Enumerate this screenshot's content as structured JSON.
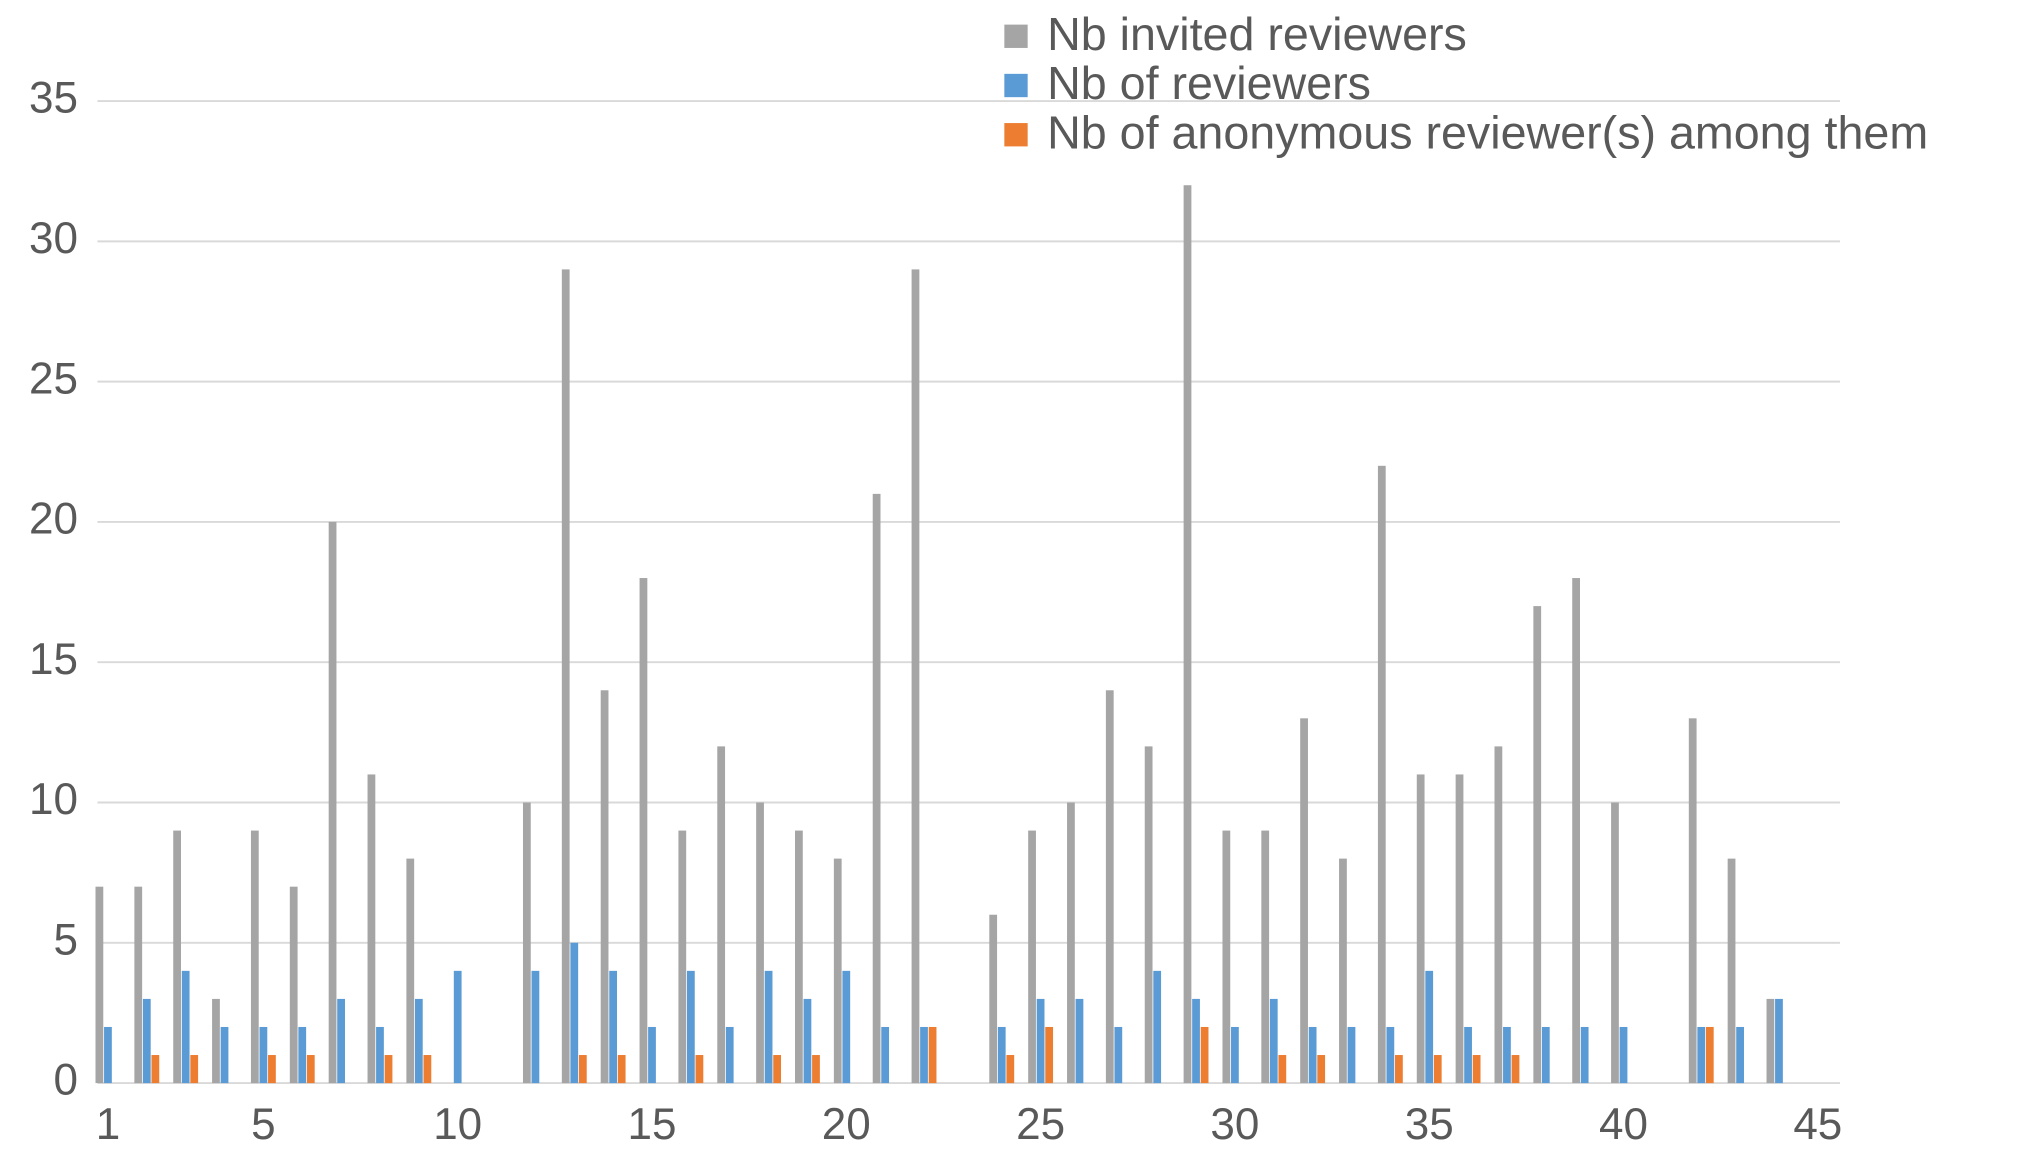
{
  "chart_data": {
    "type": "bar",
    "x": [
      1,
      2,
      3,
      4,
      5,
      6,
      7,
      8,
      9,
      10,
      11,
      12,
      13,
      14,
      15,
      16,
      17,
      18,
      19,
      20,
      21,
      22,
      23,
      24,
      25,
      26,
      27,
      28,
      29,
      30,
      31,
      32,
      33,
      34,
      35,
      36,
      37,
      38,
      39,
      40,
      41,
      42,
      43,
      44
    ],
    "series": [
      {
        "name": "Nb invited reviewers",
        "color": "#a5a5a5",
        "values": [
          7,
          7,
          9,
          3,
          9,
          7,
          20,
          11,
          8,
          0,
          0,
          10,
          29,
          14,
          18,
          9,
          12,
          10,
          9,
          8,
          21,
          29,
          0,
          6,
          9,
          10,
          14,
          12,
          32,
          9,
          9,
          13,
          8,
          22,
          11,
          11,
          12,
          17,
          18,
          10,
          0,
          13,
          8,
          3
        ]
      },
      {
        "name": "Nb of reviewers",
        "color": "#5b9bd5",
        "values": [
          2,
          3,
          4,
          2,
          2,
          2,
          3,
          2,
          3,
          4,
          0,
          4,
          5,
          4,
          2,
          4,
          2,
          4,
          3,
          4,
          2,
          2,
          0,
          2,
          3,
          3,
          2,
          4,
          3,
          2,
          3,
          2,
          2,
          2,
          4,
          2,
          2,
          2,
          2,
          2,
          0,
          2,
          2,
          3
        ]
      },
      {
        "name": "Nb of anonymous reviewer(s) among them",
        "color": "#ed7d31",
        "values": [
          0,
          1,
          1,
          0,
          1,
          1,
          0,
          1,
          1,
          0,
          0,
          0,
          1,
          1,
          0,
          1,
          0,
          1,
          1,
          0,
          0,
          2,
          0,
          1,
          2,
          0,
          0,
          0,
          2,
          0,
          1,
          1,
          0,
          1,
          1,
          1,
          1,
          0,
          0,
          0,
          0,
          2,
          0,
          0
        ]
      }
    ],
    "xlim": [
      0.73,
      45.57
    ],
    "xticks": [
      1,
      5,
      10,
      15,
      20,
      25,
      30,
      35,
      40,
      45
    ],
    "ylim": [
      0,
      35
    ],
    "yticks": [
      0,
      5,
      10,
      15,
      20,
      25,
      30,
      35
    ],
    "grid": true,
    "legend": "top-right"
  }
}
